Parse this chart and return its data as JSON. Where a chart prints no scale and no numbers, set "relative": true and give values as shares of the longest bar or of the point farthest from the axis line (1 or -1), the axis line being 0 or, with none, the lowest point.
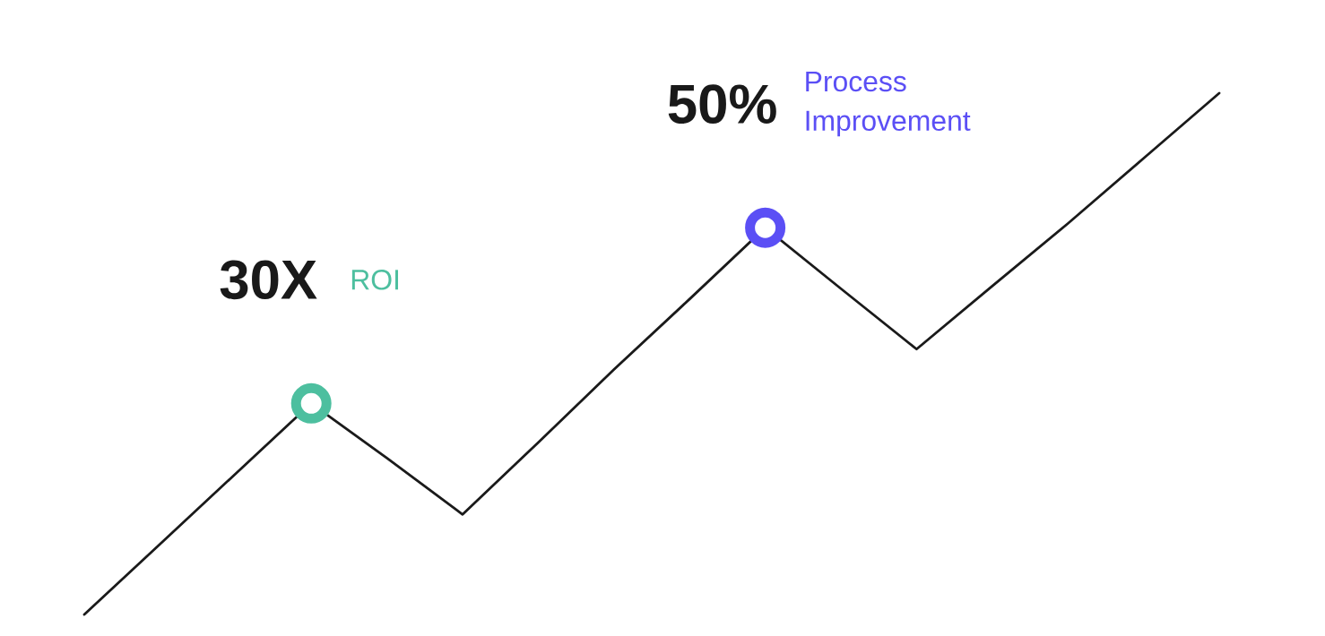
{
  "chart_data": {
    "type": "line",
    "relative": true,
    "categories": [
      null,
      null,
      null,
      null,
      null,
      null,
      null,
      null,
      null,
      null,
      null,
      null,
      null,
      null,
      null,
      null
    ],
    "series": [
      {
        "color": "#1a1a1a",
        "values": [
          0,
          0.135,
          0.27,
          0.405,
          0.3,
          0.192,
          0.33,
          0.47,
          0.605,
          0.742,
          0.625,
          0.509,
          0.63,
          0.75,
          0.875,
          1
        ],
        "colors": [
          null,
          null,
          null,
          "#4dbf9f",
          null,
          null,
          null,
          null,
          null,
          "#5b4ff5",
          null,
          null,
          null,
          null,
          null,
          null
        ]
      }
    ],
    "marker": "none",
    "line_style": "solid",
    "annotations": [
      "30X",
      "ROI",
      "50%",
      "Process Improvement"
    ]
  }
}
